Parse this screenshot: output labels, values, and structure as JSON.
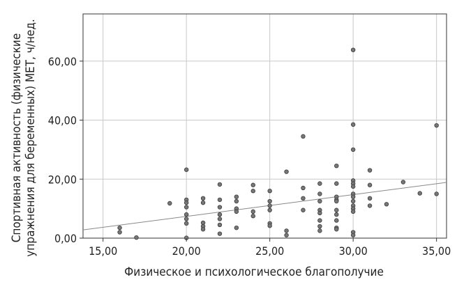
{
  "chart_data": {
    "type": "scatter",
    "xlabel": "Физическое и психологическое благополучие",
    "ylabel_lines": [
      "Спортивная активность (физические",
      "упражнения для беременных) МЕТ, ч/нед."
    ],
    "xlim": [
      13.8,
      35.6
    ],
    "ylim": [
      0,
      76
    ],
    "x_ticks": [
      15,
      20,
      25,
      30,
      35
    ],
    "x_tick_labels": [
      "15,00",
      "20,00",
      "25,00",
      "30,00",
      "35,00"
    ],
    "y_ticks": [
      0,
      20,
      40,
      60
    ],
    "y_tick_labels": [
      "0,00",
      "20,00",
      "40,00",
      "60,00"
    ],
    "grid": true,
    "trendline": [
      [
        13.8,
        2.8
      ],
      [
        35.6,
        18.9
      ]
    ],
    "colors": {
      "point": "#777777",
      "point_edge": "#3a3a3a",
      "grid": "#c8c8c8",
      "line": "#888888"
    },
    "points": [
      [
        16,
        3.5
      ],
      [
        16,
        2
      ],
      [
        17,
        0.2
      ],
      [
        19,
        11.8
      ],
      [
        20,
        23.2
      ],
      [
        20,
        13
      ],
      [
        20,
        12
      ],
      [
        20,
        10.5
      ],
      [
        20,
        8
      ],
      [
        20,
        6.5
      ],
      [
        20,
        5
      ],
      [
        20,
        0.1
      ],
      [
        21,
        13.5
      ],
      [
        21,
        12
      ],
      [
        21,
        5.2
      ],
      [
        21,
        4
      ],
      [
        21,
        3
      ],
      [
        22,
        18.2
      ],
      [
        22,
        13
      ],
      [
        22,
        10.5
      ],
      [
        22,
        8
      ],
      [
        22,
        6.5
      ],
      [
        22,
        4.5
      ],
      [
        22,
        1.5
      ],
      [
        23,
        14
      ],
      [
        23,
        12.5
      ],
      [
        23,
        10
      ],
      [
        23,
        9
      ],
      [
        23,
        3.5
      ],
      [
        24,
        18
      ],
      [
        24,
        16
      ],
      [
        24,
        9
      ],
      [
        24,
        7.5
      ],
      [
        25,
        16
      ],
      [
        25,
        12.5
      ],
      [
        25,
        11
      ],
      [
        25,
        9.5
      ],
      [
        25,
        5
      ],
      [
        25,
        4.2
      ],
      [
        26,
        22.5
      ],
      [
        26,
        2.5
      ],
      [
        26,
        1
      ],
      [
        27,
        34.5
      ],
      [
        27,
        17
      ],
      [
        27,
        13.5
      ],
      [
        27,
        9.5
      ],
      [
        28,
        18.5
      ],
      [
        28,
        15
      ],
      [
        28,
        12.5
      ],
      [
        28,
        9.5
      ],
      [
        28,
        8.5
      ],
      [
        28,
        6
      ],
      [
        28,
        4
      ],
      [
        28,
        2.5
      ],
      [
        29,
        24.5
      ],
      [
        29,
        18.5
      ],
      [
        29,
        14
      ],
      [
        29,
        13
      ],
      [
        29,
        12.5
      ],
      [
        29,
        9.5
      ],
      [
        29,
        8
      ],
      [
        29,
        6
      ],
      [
        29,
        3.5
      ],
      [
        29,
        3
      ],
      [
        30,
        63.8
      ],
      [
        30,
        38.5
      ],
      [
        30,
        30
      ],
      [
        30,
        19.5
      ],
      [
        30,
        18.5
      ],
      [
        30,
        17.5
      ],
      [
        30,
        15
      ],
      [
        30,
        14
      ],
      [
        30,
        12.5
      ],
      [
        30,
        11
      ],
      [
        30,
        10
      ],
      [
        30,
        9
      ],
      [
        30,
        2
      ],
      [
        30,
        1
      ],
      [
        31,
        23
      ],
      [
        31,
        18
      ],
      [
        31,
        13.5
      ],
      [
        31,
        11
      ],
      [
        32,
        11.5
      ],
      [
        33,
        19
      ],
      [
        34,
        15.2
      ],
      [
        35,
        38.2
      ],
      [
        35,
        15
      ]
    ]
  }
}
